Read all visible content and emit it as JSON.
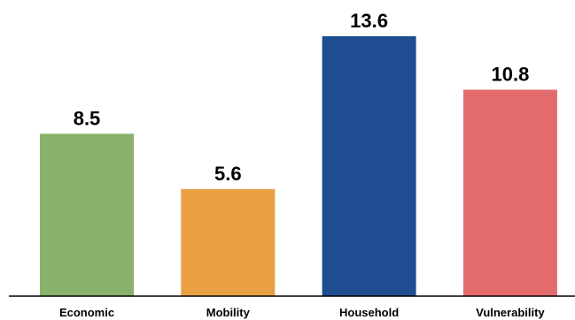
{
  "chart_data": {
    "type": "bar",
    "categories": [
      "Economic",
      "Mobility",
      "Household",
      "Vulnerability"
    ],
    "values": [
      8.5,
      5.6,
      13.6,
      10.8
    ],
    "value_labels": [
      "8.5",
      "5.6",
      "13.6",
      "10.8"
    ],
    "colors": [
      "#88b26a",
      "#e9a043",
      "#1e4d91",
      "#e36b6b"
    ],
    "title": "",
    "xlabel": "",
    "ylabel": "",
    "ylim": [
      0,
      13.6
    ],
    "grid": false,
    "legend": "none"
  }
}
